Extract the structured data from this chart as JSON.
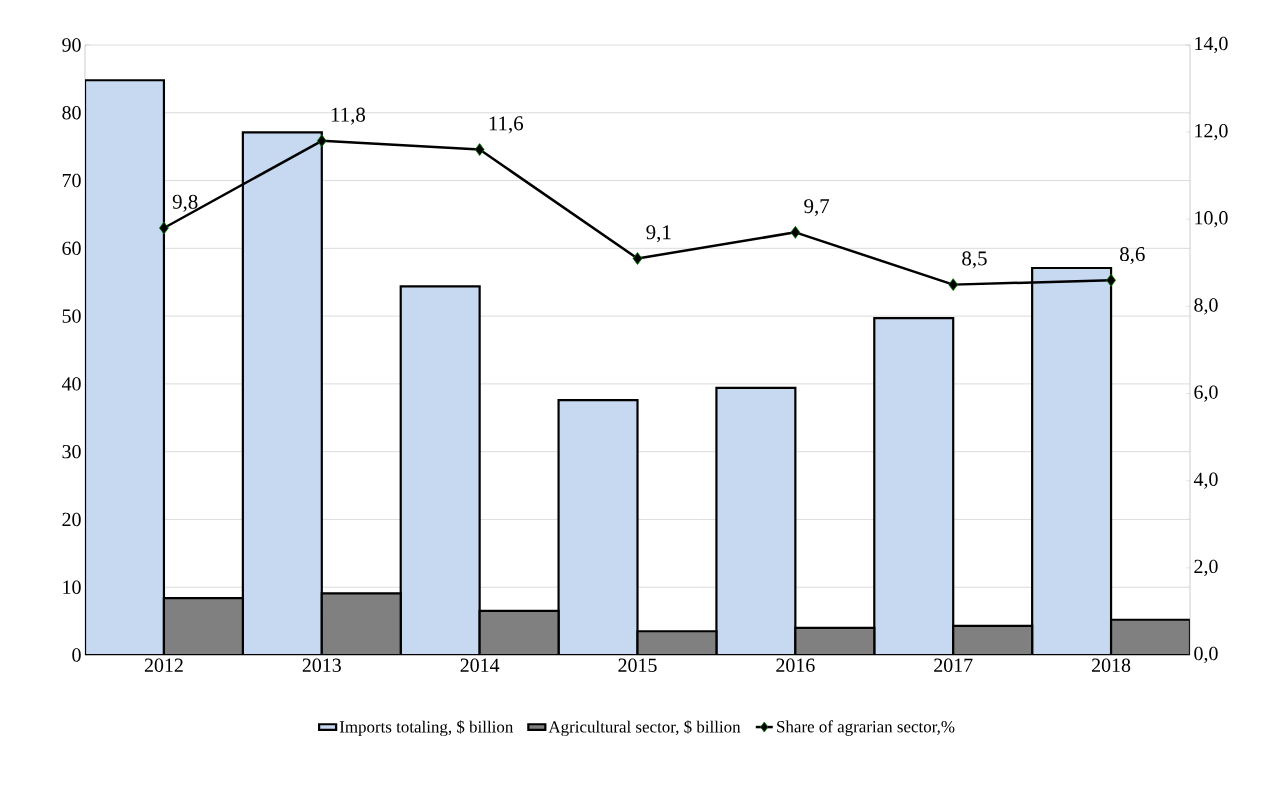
{
  "chart_data": {
    "type": "bar",
    "categories": [
      "2012",
      "2013",
      "2014",
      "2015",
      "2016",
      "2017",
      "2018"
    ],
    "series": [
      {
        "name": "Imports totaling, $ billion",
        "color": "#c6d9f1",
        "values": [
          84.8,
          77.1,
          54.4,
          37.6,
          39.4,
          49.7,
          57.1
        ]
      },
      {
        "name": "Agricultural sector, $  billion",
        "color": "#808080",
        "values": [
          8.4,
          9.1,
          6.5,
          3.5,
          4.0,
          4.3,
          5.2
        ]
      },
      {
        "name": "Share of agrarian sector,%",
        "type": "line",
        "axis": "y2",
        "color": "#000000",
        "marker": "diamond",
        "values": [
          9.8,
          11.8,
          11.6,
          9.1,
          9.7,
          8.5,
          8.6
        ],
        "value_labels": [
          "9,8",
          "11,8",
          "11,6",
          "9,1",
          "9,7",
          "8,5",
          "8,6"
        ]
      }
    ],
    "ylim": [
      0,
      90
    ],
    "yticks": [
      0,
      10,
      20,
      30,
      40,
      50,
      60,
      70,
      80,
      90
    ],
    "y2lim": [
      0,
      14
    ],
    "y2ticks": [
      {
        "value": 0,
        "label": "0,0"
      },
      {
        "value": 2,
        "label": "2,0"
      },
      {
        "value": 4,
        "label": "4,0"
      },
      {
        "value": 6,
        "label": "6,0"
      },
      {
        "value": 8,
        "label": "8,0"
      },
      {
        "value": 10,
        "label": "10,0"
      },
      {
        "value": 12,
        "label": "12,0"
      },
      {
        "value": 14,
        "label": "14,0"
      }
    ],
    "grid": "y",
    "legend": "bottom"
  }
}
